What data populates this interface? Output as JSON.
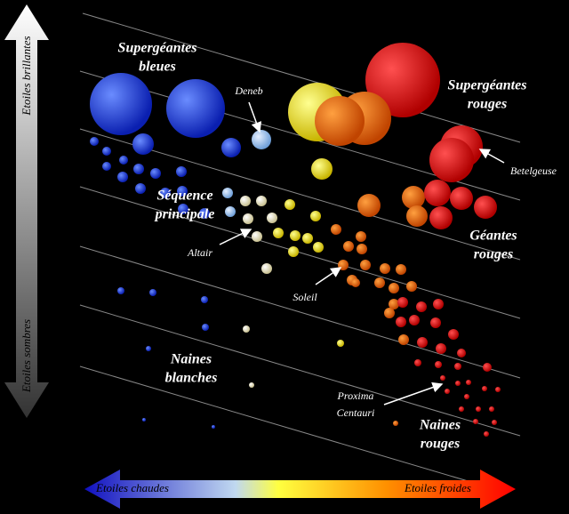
{
  "axes": {
    "bright": "Etoiles brillantes",
    "dim": "Etoiles sombres",
    "hot": "Etoiles chaudes",
    "cool": "Etoiles froides"
  },
  "regions": {
    "blue_supergiants": [
      "Supergéantes",
      "bleues"
    ],
    "red_supergiants": [
      "Supergéantes",
      "rouges"
    ],
    "main_sequence": [
      "Séquence",
      "principale"
    ],
    "red_giants": [
      "Géantes",
      "rouges"
    ],
    "white_dwarfs": [
      "Naines",
      "blanches"
    ],
    "red_dwarfs": [
      "Naines",
      "rouges"
    ]
  },
  "stars": {
    "deneb": "Deneb",
    "betelgeuse": "Betelgeuse",
    "altair": "Altair",
    "sun": "Soleil",
    "proxima": [
      "Proxima",
      "Centauri"
    ]
  }
}
